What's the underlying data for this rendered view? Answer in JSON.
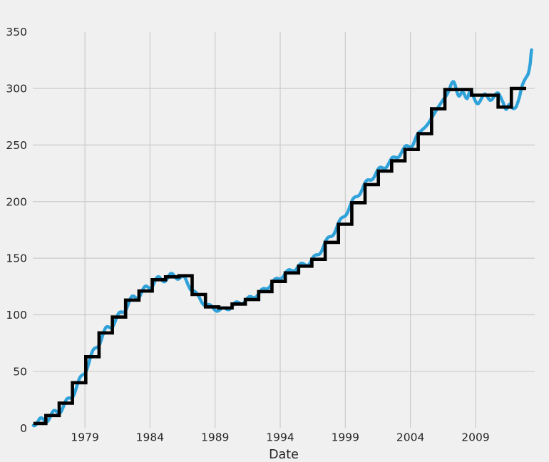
{
  "figure": {
    "background_color": "#f0f0f0",
    "grid_color": "#cbcbcb",
    "text_color": "#262626"
  },
  "chart_data": {
    "type": "line",
    "title": "",
    "xlabel": "Date",
    "ylabel": "",
    "legend": "none",
    "grid": "on",
    "x_tick_labels": [
      "1979",
      "1984",
      "1989",
      "1994",
      "1999",
      "2004",
      "2009"
    ],
    "x_tick_years": [
      1979,
      1984,
      1989,
      1994,
      1999,
      2004,
      2009
    ],
    "y_tick_labels": [
      "0",
      "50",
      "100",
      "150",
      "200",
      "250",
      "300",
      "350"
    ],
    "y_tick_values": [
      0,
      50,
      100,
      150,
      200,
      250,
      300,
      350
    ],
    "grid_y_values": [
      50,
      100,
      150,
      200,
      250,
      300
    ],
    "xlim": [
      1975.0,
      2013.5
    ],
    "ylim": [
      0,
      350
    ],
    "series": [
      {
        "name": "monthly-values",
        "color": "#30a2da",
        "line_width": 4.5,
        "style": "smooth-line",
        "anchors": [
          [
            1975.04,
            5
          ],
          [
            1975.5,
            5.5
          ],
          [
            1976.5,
            11.5
          ],
          [
            1977.5,
            21
          ],
          [
            1978.5,
            39
          ],
          [
            1979.5,
            63
          ],
          [
            1980.5,
            84
          ],
          [
            1981.5,
            97
          ],
          [
            1982.5,
            112
          ],
          [
            1983.5,
            121
          ],
          [
            1984.5,
            130
          ],
          [
            1985.5,
            133
          ],
          [
            1986.1,
            134.5
          ],
          [
            1987.0,
            127
          ],
          [
            1987.6,
            117
          ],
          [
            1988.3,
            109
          ],
          [
            1989.0,
            105.5
          ],
          [
            1989.6,
            104.3
          ],
          [
            1990.5,
            109
          ],
          [
            1991.5,
            113.5
          ],
          [
            1992.5,
            120
          ],
          [
            1993.5,
            129
          ],
          [
            1994.5,
            137
          ],
          [
            1995.5,
            143
          ],
          [
            1996.5,
            148.5
          ],
          [
            1997.5,
            163.5
          ],
          [
            1998.5,
            180
          ],
          [
            1999.5,
            198.5
          ],
          [
            2000.5,
            214.5
          ],
          [
            2001.5,
            226.5
          ],
          [
            2002.5,
            235.5
          ],
          [
            2003.5,
            245.5
          ],
          [
            2004.2,
            252
          ],
          [
            2004.7,
            261
          ],
          [
            2005.3,
            268
          ],
          [
            2005.9,
            279
          ],
          [
            2006.4,
            288
          ],
          [
            2006.85,
            295.5
          ],
          [
            2007.3,
            306
          ],
          [
            2007.7,
            293.5
          ],
          [
            2008.0,
            297
          ],
          [
            2008.35,
            291
          ],
          [
            2008.6,
            297.5
          ],
          [
            2009.15,
            286.5
          ],
          [
            2009.7,
            295
          ],
          [
            2010.15,
            289.5
          ],
          [
            2010.7,
            296
          ],
          [
            2011.1,
            288
          ],
          [
            2011.35,
            281.5
          ],
          [
            2011.6,
            286
          ],
          [
            2011.85,
            282.5
          ],
          [
            2012.1,
            283.5
          ],
          [
            2012.35,
            291.5
          ],
          [
            2012.6,
            303
          ],
          [
            2012.85,
            309
          ],
          [
            2013.05,
            313
          ],
          [
            2013.2,
            322
          ],
          [
            2013.3,
            334
          ]
        ],
        "seasonal_wiggle": {
          "phase": 0.35,
          "bands": [
            {
              "t_max": 1987.3,
              "amp": 3.0
            },
            {
              "t_max": 1996.0,
              "amp": 1.8
            },
            {
              "t_max": 2004.2,
              "amp": 2.3
            }
          ],
          "fade_end": 2004.9
        }
      },
      {
        "name": "annual-mean-steps",
        "color": "#000000",
        "line_width": 4.6,
        "style": "steps",
        "start": 1975.04,
        "end": 2012.89,
        "first_step_at": 1976.0,
        "step_spacing": 1.0215,
        "value_years": [
          1975,
          1976,
          1977,
          1978,
          1979,
          1980,
          1981,
          1982,
          1983,
          1984,
          1985,
          1986,
          1987,
          1988,
          1989,
          1990,
          1991,
          1992,
          1993,
          1994,
          1995,
          1996,
          1997,
          1998,
          1999,
          2000,
          2001,
          2002,
          2003,
          2004,
          2005,
          2006,
          2007,
          2008,
          2009,
          2010,
          2011
        ],
        "values": [
          4,
          11,
          22,
          40,
          63,
          84,
          98,
          113,
          121,
          131,
          133.5,
          134.5,
          118,
          107,
          106,
          109.5,
          113.5,
          120.5,
          129.5,
          137,
          143,
          149,
          164,
          180,
          199,
          215,
          227,
          236,
          246,
          260,
          282,
          299,
          299,
          294,
          294,
          283.5,
          300
        ]
      }
    ]
  }
}
